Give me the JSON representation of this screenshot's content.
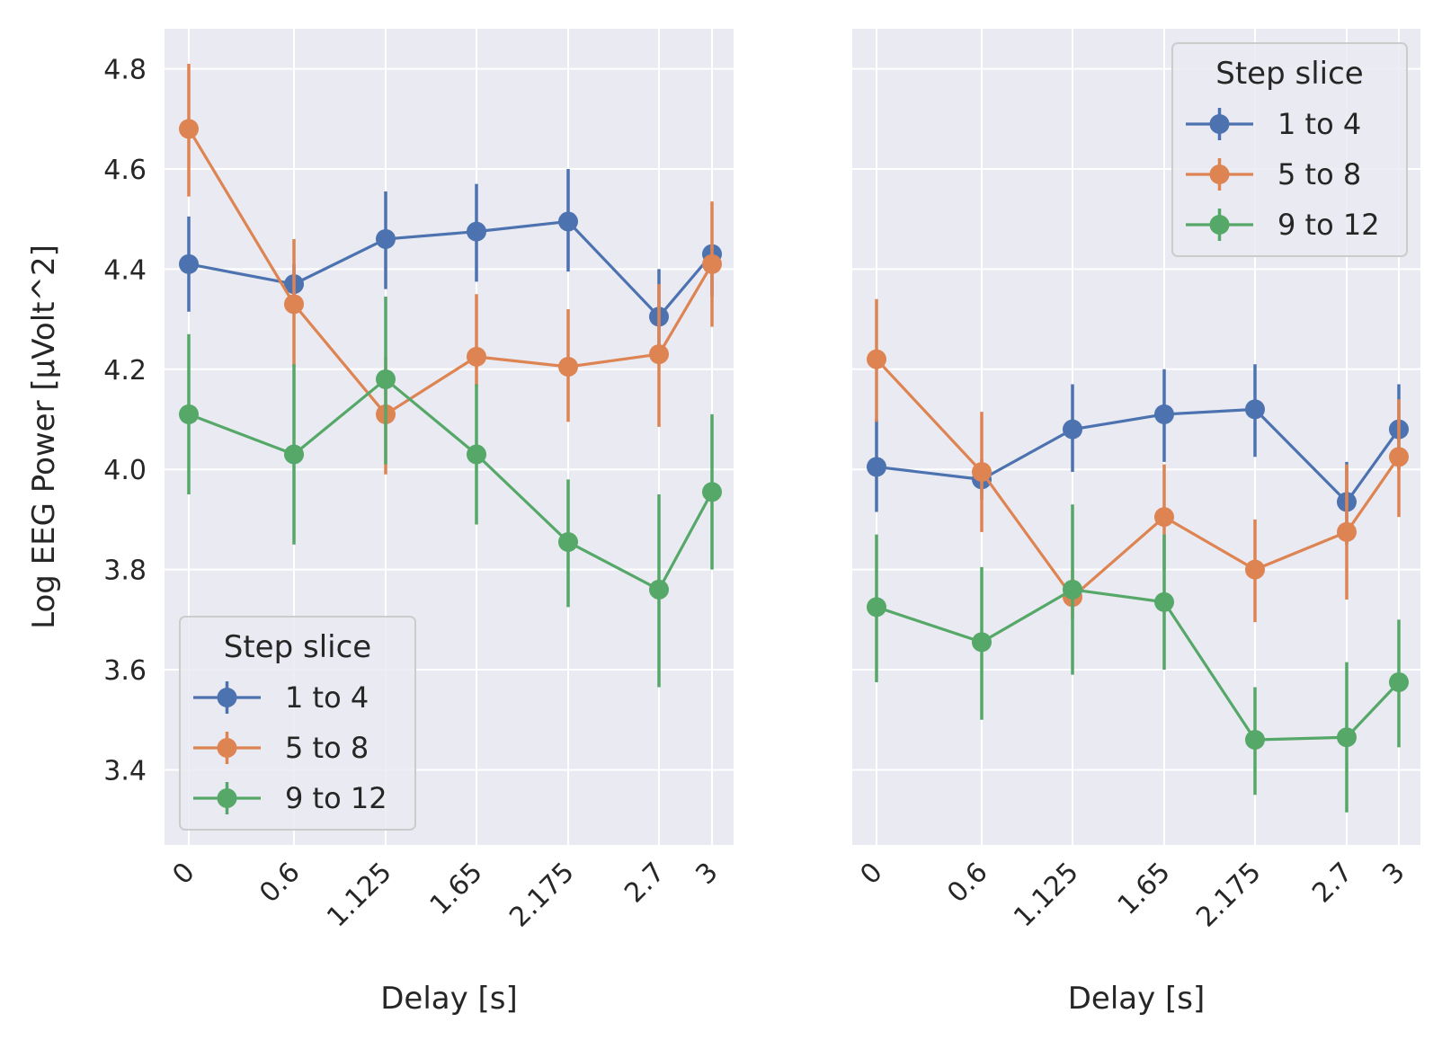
{
  "chart_data": [
    {
      "type": "line",
      "x_categories": [
        "0",
        "0.6",
        "1.125",
        "1.65",
        "2.175",
        "2.7",
        "3"
      ],
      "x_values": [
        0,
        0.6,
        1.125,
        1.65,
        2.175,
        2.7,
        3
      ],
      "xlabel": "Delay [s]",
      "ylabel": "Log EEG Power [µVolt^2]",
      "ylim": [
        3.25,
        4.88
      ],
      "yticks": [
        "3.4",
        "3.6",
        "3.8",
        "4.0",
        "4.2",
        "4.4",
        "4.6",
        "4.8"
      ],
      "grid": true,
      "legend": {
        "title": "Step slice",
        "placement": "lower-left"
      },
      "series": [
        {
          "name": "1 to 4",
          "color": "#4c72b0",
          "values": [
            4.41,
            4.37,
            4.46,
            4.475,
            4.495,
            4.305,
            4.43
          ],
          "err_low": [
            4.315,
            4.33,
            4.36,
            4.375,
            4.395,
            4.21,
            4.345
          ],
          "err_high": [
            4.505,
            4.41,
            4.555,
            4.57,
            4.6,
            4.4,
            4.44
          ]
        },
        {
          "name": "5 to 8",
          "color": "#dd8452",
          "values": [
            4.68,
            4.33,
            4.11,
            4.225,
            4.205,
            4.23,
            4.41
          ],
          "err_low": [
            4.545,
            4.205,
            3.99,
            4.165,
            4.095,
            4.085,
            4.285
          ],
          "err_high": [
            4.81,
            4.46,
            4.225,
            4.35,
            4.32,
            4.37,
            4.535
          ]
        },
        {
          "name": "9 to 12",
          "color": "#55a868",
          "values": [
            4.11,
            4.03,
            4.18,
            4.03,
            3.855,
            3.76,
            3.955
          ],
          "err_low": [
            3.95,
            3.85,
            4.01,
            3.89,
            3.725,
            3.565,
            3.8
          ],
          "err_high": [
            4.27,
            4.21,
            4.345,
            4.17,
            3.98,
            3.95,
            4.11
          ]
        }
      ]
    },
    {
      "type": "line",
      "x_categories": [
        "0",
        "0.6",
        "1.125",
        "1.65",
        "2.175",
        "2.7",
        "3"
      ],
      "x_values": [
        0,
        0.6,
        1.125,
        1.65,
        2.175,
        2.7,
        3
      ],
      "xlabel": "Delay [s]",
      "ylabel": "",
      "ylim": [
        3.25,
        4.88
      ],
      "grid": true,
      "legend": {
        "title": "Step slice",
        "placement": "upper-right"
      },
      "series": [
        {
          "name": "1 to 4",
          "color": "#4c72b0",
          "values": [
            4.005,
            3.98,
            4.08,
            4.11,
            4.12,
            3.935,
            4.08
          ],
          "err_low": [
            3.915,
            3.94,
            3.995,
            4.015,
            4.025,
            3.85,
            4.0
          ],
          "err_high": [
            4.1,
            4.02,
            4.17,
            4.2,
            4.21,
            4.015,
            4.17
          ]
        },
        {
          "name": "5 to 8",
          "color": "#dd8452",
          "values": [
            4.22,
            3.995,
            3.745,
            3.905,
            3.8,
            3.875,
            4.025
          ],
          "err_low": [
            4.095,
            3.875,
            3.7,
            3.8,
            3.695,
            3.74,
            3.905
          ],
          "err_high": [
            4.34,
            4.115,
            3.8,
            4.01,
            3.9,
            4.01,
            4.14
          ]
        },
        {
          "name": "9 to 12",
          "color": "#55a868",
          "values": [
            3.725,
            3.655,
            3.76,
            3.735,
            3.46,
            3.465,
            3.575
          ],
          "err_low": [
            3.575,
            3.5,
            3.59,
            3.6,
            3.35,
            3.315,
            3.445
          ],
          "err_high": [
            3.87,
            3.805,
            3.93,
            3.87,
            3.565,
            3.615,
            3.7
          ]
        }
      ]
    }
  ]
}
